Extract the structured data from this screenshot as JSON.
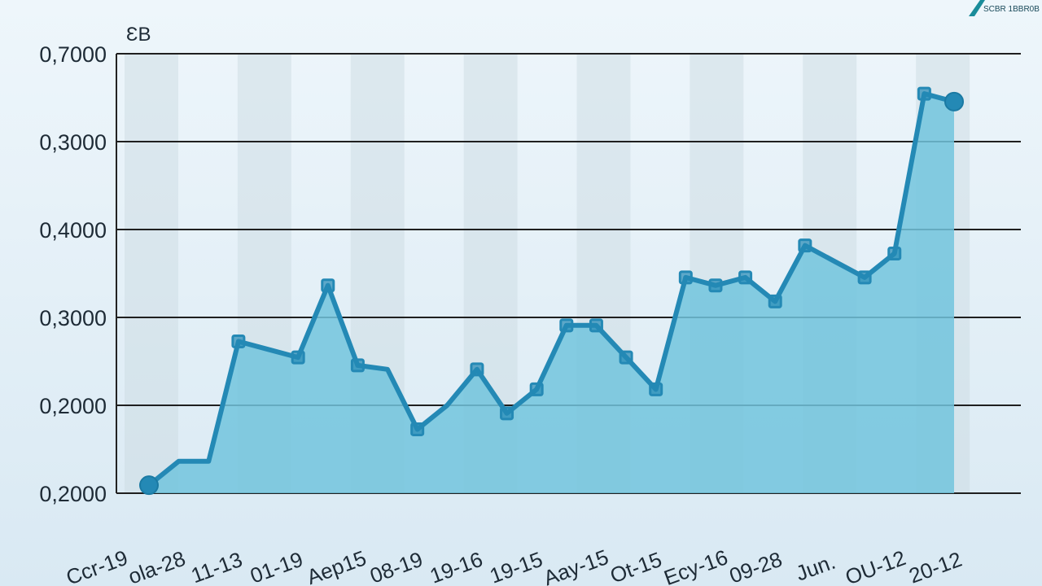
{
  "logo": {
    "text": "SCBR 1BBR0B"
  },
  "chart_data": {
    "type": "area",
    "title": "",
    "ylabel": "ƐB",
    "y_tick_labels": [
      "0,2000",
      "0,2000",
      "0,3000",
      "0,4000",
      "0,3000",
      "0,7000"
    ],
    "x_tick_labels": [
      "Ccr-19",
      "ola-28",
      "11-13",
      "01-19",
      "Aep15",
      "08-19",
      "19-16",
      "19-15",
      "Aay-15",
      "Ot-15",
      "Ecy-16",
      "09-28",
      "Jun.",
      "OU-12",
      "20-12"
    ],
    "ylim": [
      0.15,
      0.7
    ],
    "y": [
      0.16,
      0.19,
      0.19,
      0.34,
      0.33,
      0.32,
      0.41,
      0.31,
      0.305,
      0.23,
      0.26,
      0.305,
      0.25,
      0.28,
      0.36,
      0.36,
      0.32,
      0.28,
      0.42,
      0.41,
      0.42,
      0.39,
      0.46,
      0.44,
      0.42,
      0.45,
      0.65,
      0.64
    ],
    "marker": [
      "dot",
      "none",
      "none",
      "square",
      "none",
      "square",
      "square",
      "square",
      "none",
      "square",
      "none",
      "square",
      "square",
      "square",
      "square",
      "square",
      "square",
      "square",
      "square",
      "square",
      "square",
      "square",
      "square",
      "none",
      "square",
      "square",
      "square",
      "dot"
    ],
    "colors": {
      "line": "#2489b5",
      "fill": "#72c4dd",
      "marker": "#2489b5"
    },
    "grid": true
  }
}
